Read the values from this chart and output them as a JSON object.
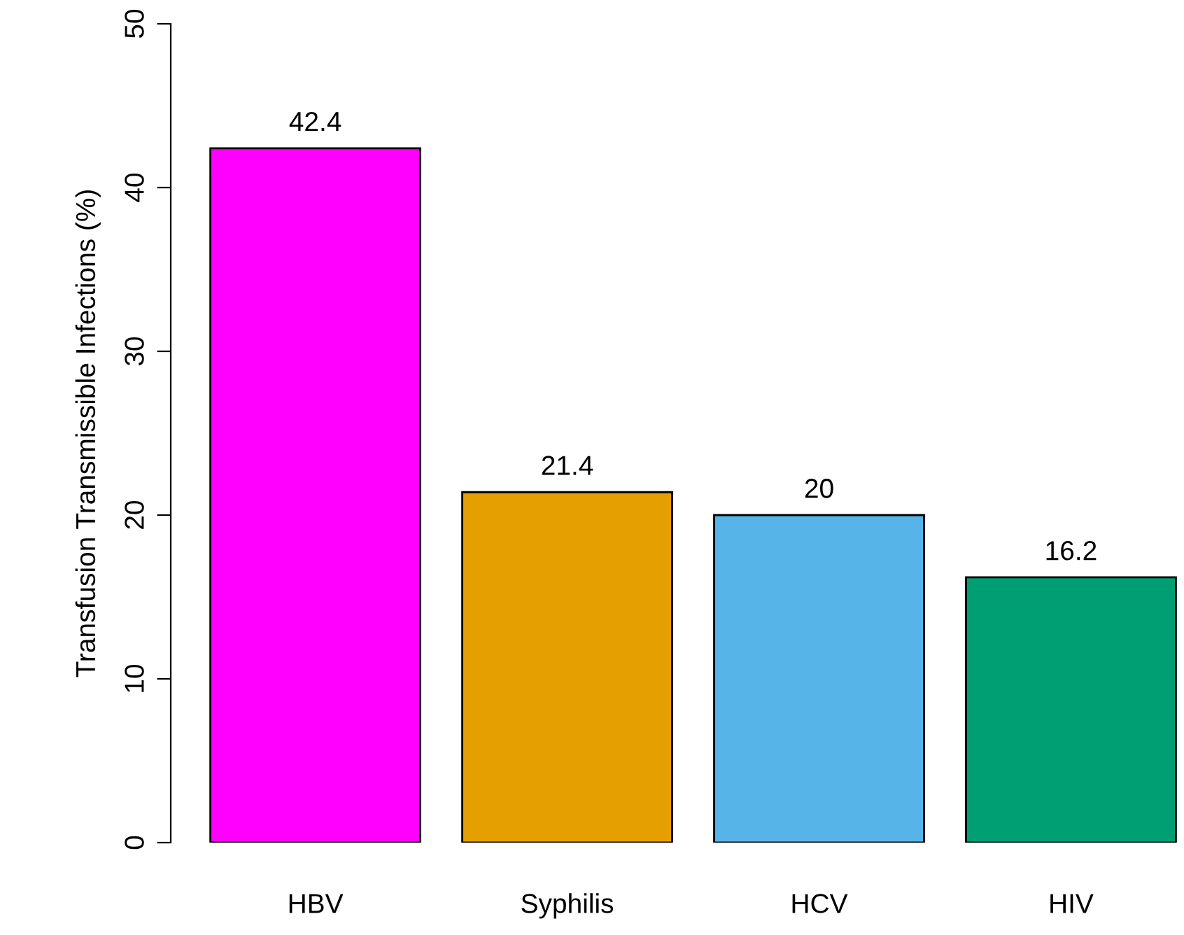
{
  "chart_data": {
    "type": "bar",
    "ylabel": "Transfusion Transmissible Infections (%)",
    "categories": [
      "HBV",
      "Syphilis",
      "HCV",
      "HIV"
    ],
    "values": [
      42.4,
      21.4,
      20,
      16.2
    ],
    "colors": [
      "#ff00ff",
      "#e69f00",
      "#56b4e9",
      "#009e73"
    ],
    "ylim": [
      0,
      50
    ],
    "yticks": [
      0,
      10,
      20,
      30,
      40,
      50
    ],
    "data_labels": true,
    "grid": false,
    "legend": false
  }
}
